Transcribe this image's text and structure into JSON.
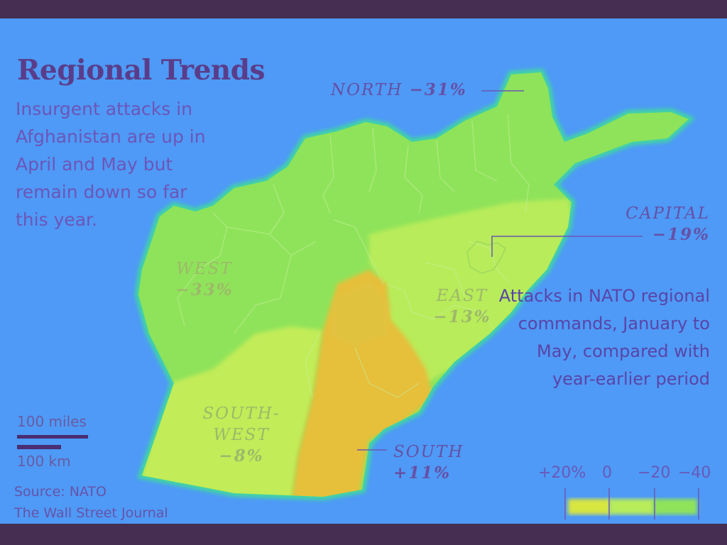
{
  "title": "Regional Trends",
  "subtitle": "Insurgent attacks in Afghanistan are up in April and May but remain down so far this year.",
  "regions": {
    "north": {
      "name": "NORTH",
      "change": "−31%",
      "value": -31
    },
    "capital": {
      "name": "CAPITAL",
      "change": "−19%",
      "value": -19
    },
    "west": {
      "name": "WEST",
      "change": "−33%",
      "value": -33
    },
    "east": {
      "name": "EAST",
      "change": "−13%",
      "value": -13
    },
    "southwest": {
      "name_line1": "SOUTH-",
      "name_line2": "WEST",
      "change": "−8%",
      "value": -8
    },
    "south": {
      "name": "SOUTH",
      "change": "+11%",
      "value": 11
    }
  },
  "legend": {
    "description": "Attacks in NATO regional commands, January to May, compared with year-earlier period",
    "ticks": [
      "+20%",
      "0",
      "−20",
      "−40"
    ]
  },
  "scale": {
    "miles": "100 miles",
    "km": "100 km"
  },
  "source": {
    "line1": "Source: NATO",
    "line2": "The Wall Street Journal"
  },
  "colors": {
    "water": "#4e9af6",
    "frame": "#452e52",
    "green": "#8fe35a",
    "yellow_green": "#b8ec5a",
    "orange": "#e6bf3a",
    "text_dark": "#5a3d8a"
  }
}
